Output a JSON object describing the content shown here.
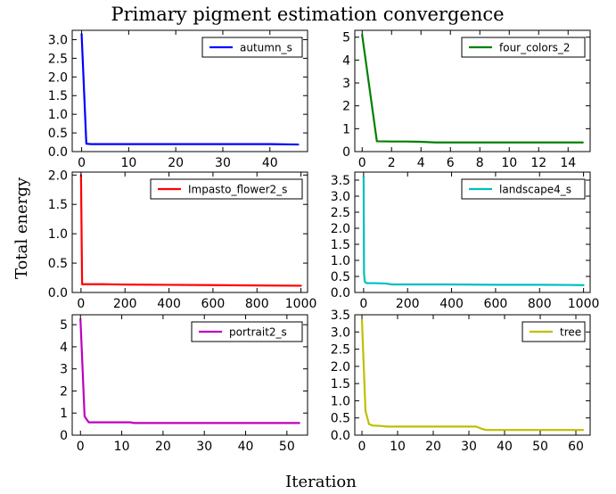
{
  "figure": {
    "title": "Primary pigment estimation convergence",
    "xlabel": "Iteration",
    "ylabel": "Total energy"
  },
  "chart_data": [
    {
      "type": "line",
      "series": [
        {
          "name": "autumn_s",
          "color": "#0000ff",
          "x": [
            0,
            1,
            2,
            5,
            10,
            20,
            30,
            40,
            46
          ],
          "y": [
            3.15,
            0.21,
            0.2,
            0.2,
            0.2,
            0.2,
            0.2,
            0.2,
            0.19
          ]
        }
      ],
      "xlim": [
        -2,
        48
      ],
      "ylim": [
        0,
        3.25
      ],
      "xticks": [
        0,
        10,
        20,
        30,
        40
      ],
      "yticks": [
        0,
        0.5,
        1.0,
        1.5,
        2.0,
        2.5,
        3.0
      ],
      "ytick_labels": [
        "0.0",
        "0.5",
        "1.0",
        "1.5",
        "2.0",
        "2.5",
        "3.0"
      ],
      "legend": "top-right",
      "grid": false
    },
    {
      "type": "line",
      "series": [
        {
          "name": "four_colors_2",
          "color": "#008000",
          "x": [
            0,
            1,
            2,
            3,
            4,
            5,
            6,
            8,
            10,
            12,
            14,
            15
          ],
          "y": [
            5.1,
            0.45,
            0.44,
            0.44,
            0.43,
            0.4,
            0.4,
            0.4,
            0.4,
            0.4,
            0.4,
            0.4
          ]
        }
      ],
      "xlim": [
        -0.5,
        15.5
      ],
      "ylim": [
        0,
        5.3
      ],
      "xticks": [
        0,
        2,
        4,
        6,
        8,
        10,
        12,
        14
      ],
      "yticks": [
        0,
        1,
        2,
        3,
        4,
        5
      ],
      "ytick_labels": [
        "0",
        "1",
        "2",
        "3",
        "4",
        "5"
      ],
      "legend": "top-right",
      "grid": false
    },
    {
      "type": "line",
      "series": [
        {
          "name": "Impasto_flower2_s",
          "color": "#ff0000",
          "x": [
            0,
            5,
            10,
            20,
            50,
            100,
            200,
            400,
            600,
            800,
            1000
          ],
          "y": [
            2.0,
            0.14,
            0.14,
            0.14,
            0.14,
            0.14,
            0.135,
            0.13,
            0.125,
            0.12,
            0.115
          ]
        }
      ],
      "xlim": [
        -40,
        1030
      ],
      "ylim": [
        0,
        2.05
      ],
      "xticks": [
        0,
        200,
        400,
        600,
        800,
        1000
      ],
      "yticks": [
        0,
        0.5,
        1.0,
        1.5,
        2.0
      ],
      "ytick_labels": [
        "0.0",
        "0.5",
        "1.0",
        "1.5",
        "2.0"
      ],
      "legend": "top-right",
      "grid": false
    },
    {
      "type": "line",
      "series": [
        {
          "name": "landscape4_s",
          "color": "#00bfbf",
          "x": [
            0,
            2,
            5,
            10,
            20,
            50,
            100,
            130,
            200,
            400,
            600,
            800,
            1000
          ],
          "y": [
            3.6,
            0.6,
            0.35,
            0.3,
            0.29,
            0.29,
            0.28,
            0.25,
            0.25,
            0.25,
            0.24,
            0.24,
            0.23
          ]
        }
      ],
      "xlim": [
        -40,
        1030
      ],
      "ylim": [
        0,
        3.75
      ],
      "xticks": [
        0,
        200,
        400,
        600,
        800,
        1000
      ],
      "yticks": [
        0,
        0.5,
        1.0,
        1.5,
        2.0,
        2.5,
        3.0,
        3.5
      ],
      "ytick_labels": [
        "0.0",
        "0.5",
        "1.0",
        "1.5",
        "2.0",
        "2.5",
        "3.0",
        "3.5"
      ],
      "legend": "top-right",
      "grid": false
    },
    {
      "type": "line",
      "series": [
        {
          "name": "portrait2_s",
          "color": "#bf00bf",
          "x": [
            0,
            1,
            2,
            5,
            10,
            12,
            13,
            20,
            30,
            40,
            50,
            53
          ],
          "y": [
            5.25,
            0.85,
            0.58,
            0.58,
            0.58,
            0.58,
            0.55,
            0.55,
            0.55,
            0.55,
            0.55,
            0.55
          ]
        }
      ],
      "xlim": [
        -2,
        55
      ],
      "ylim": [
        0,
        5.45
      ],
      "xticks": [
        0,
        10,
        20,
        30,
        40,
        50
      ],
      "yticks": [
        0,
        1,
        2,
        3,
        4,
        5
      ],
      "ytick_labels": [
        "0",
        "1",
        "2",
        "3",
        "4",
        "5"
      ],
      "legend": "top-right",
      "grid": false
    },
    {
      "type": "line",
      "series": [
        {
          "name": "tree",
          "color": "#bfbf00",
          "x": [
            0,
            1,
            2,
            3,
            5,
            7,
            10,
            20,
            30,
            32,
            34,
            35,
            40,
            50,
            60,
            62
          ],
          "y": [
            3.35,
            0.7,
            0.32,
            0.28,
            0.27,
            0.25,
            0.25,
            0.25,
            0.25,
            0.25,
            0.17,
            0.15,
            0.15,
            0.15,
            0.15,
            0.15
          ]
        }
      ],
      "xlim": [
        -2,
        64
      ],
      "ylim": [
        0,
        3.5
      ],
      "xticks": [
        0,
        10,
        20,
        30,
        40,
        50,
        60
      ],
      "yticks": [
        0,
        0.5,
        1.0,
        1.5,
        2.0,
        2.5,
        3.0,
        3.5
      ],
      "ytick_labels": [
        "0.0",
        "0.5",
        "1.0",
        "1.5",
        "2.0",
        "2.5",
        "3.0",
        "3.5"
      ],
      "legend": "top-right",
      "grid": false
    }
  ]
}
